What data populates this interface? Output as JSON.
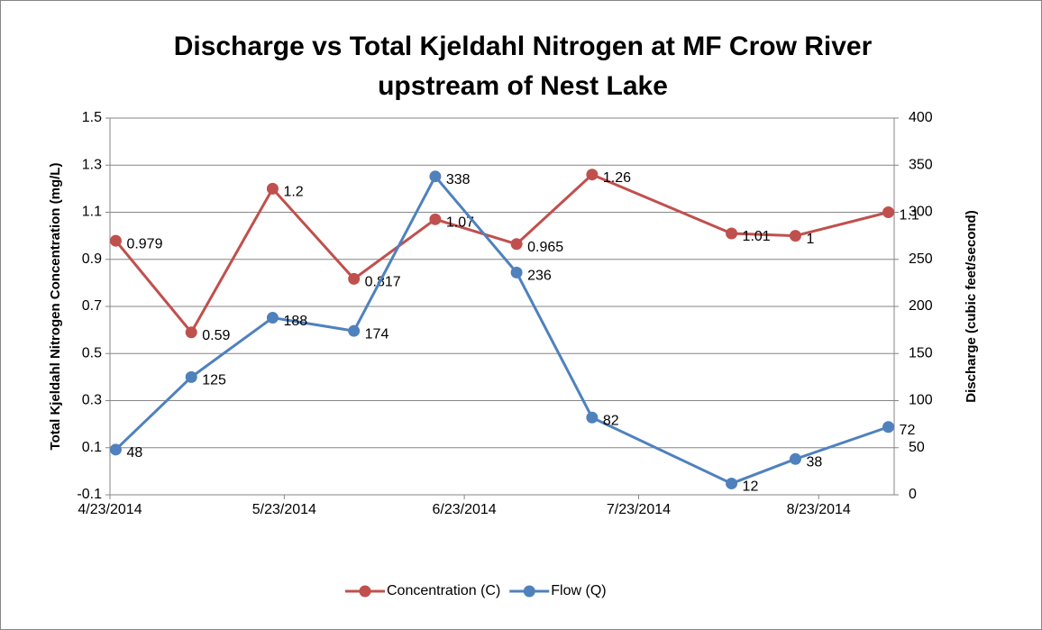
{
  "chart_data": {
    "type": "line",
    "title": "Discharge vs Total Kjeldahl Nitrogen at MF Crow River upstream of Nest Lake",
    "y_label": "Total Kjeldahl Nitrogen  Concentration (mg/L)",
    "y2_label": "Discharge (cubic feet/second)",
    "x": [
      "2014-04-24",
      "2014-05-07",
      "2014-05-21",
      "2014-06-04",
      "2014-06-18",
      "2014-07-02",
      "2014-07-15",
      "2014-08-08",
      "2014-08-19",
      "2014-09-04"
    ],
    "xlim": [
      "2014-04-23",
      "2014-09-05"
    ],
    "xticks": [
      {
        "value": "2014-04-23",
        "label": "4/23/2014"
      },
      {
        "value": "2014-05-23",
        "label": "5/23/2014"
      },
      {
        "value": "2014-06-23",
        "label": "6/23/2014"
      },
      {
        "value": "2014-07-23",
        "label": "7/23/2014"
      },
      {
        "value": "2014-08-23",
        "label": "8/23/2014"
      }
    ],
    "ylim": [
      -0.1,
      1.5
    ],
    "yticks": [
      -0.1,
      0.1,
      0.3,
      0.5,
      0.7,
      0.9,
      1.1,
      1.3,
      1.5
    ],
    "y2lim": [
      0,
      400
    ],
    "y2ticks": [
      0,
      50,
      100,
      150,
      200,
      250,
      300,
      350,
      400
    ],
    "grid": true,
    "legend": "bottom",
    "series": [
      {
        "name": "Concentration (C)",
        "color": "#c0504d",
        "values": [
          0.979,
          0.59,
          1.2,
          0.817,
          1.07,
          0.965,
          1.26,
          1.01,
          1,
          1.1
        ]
      },
      {
        "name": "Flow (Q)",
        "color": "#4f81bd",
        "axis": "y2",
        "values": [
          48,
          125,
          188,
          174,
          338,
          236,
          82,
          12,
          38,
          72
        ]
      }
    ]
  }
}
